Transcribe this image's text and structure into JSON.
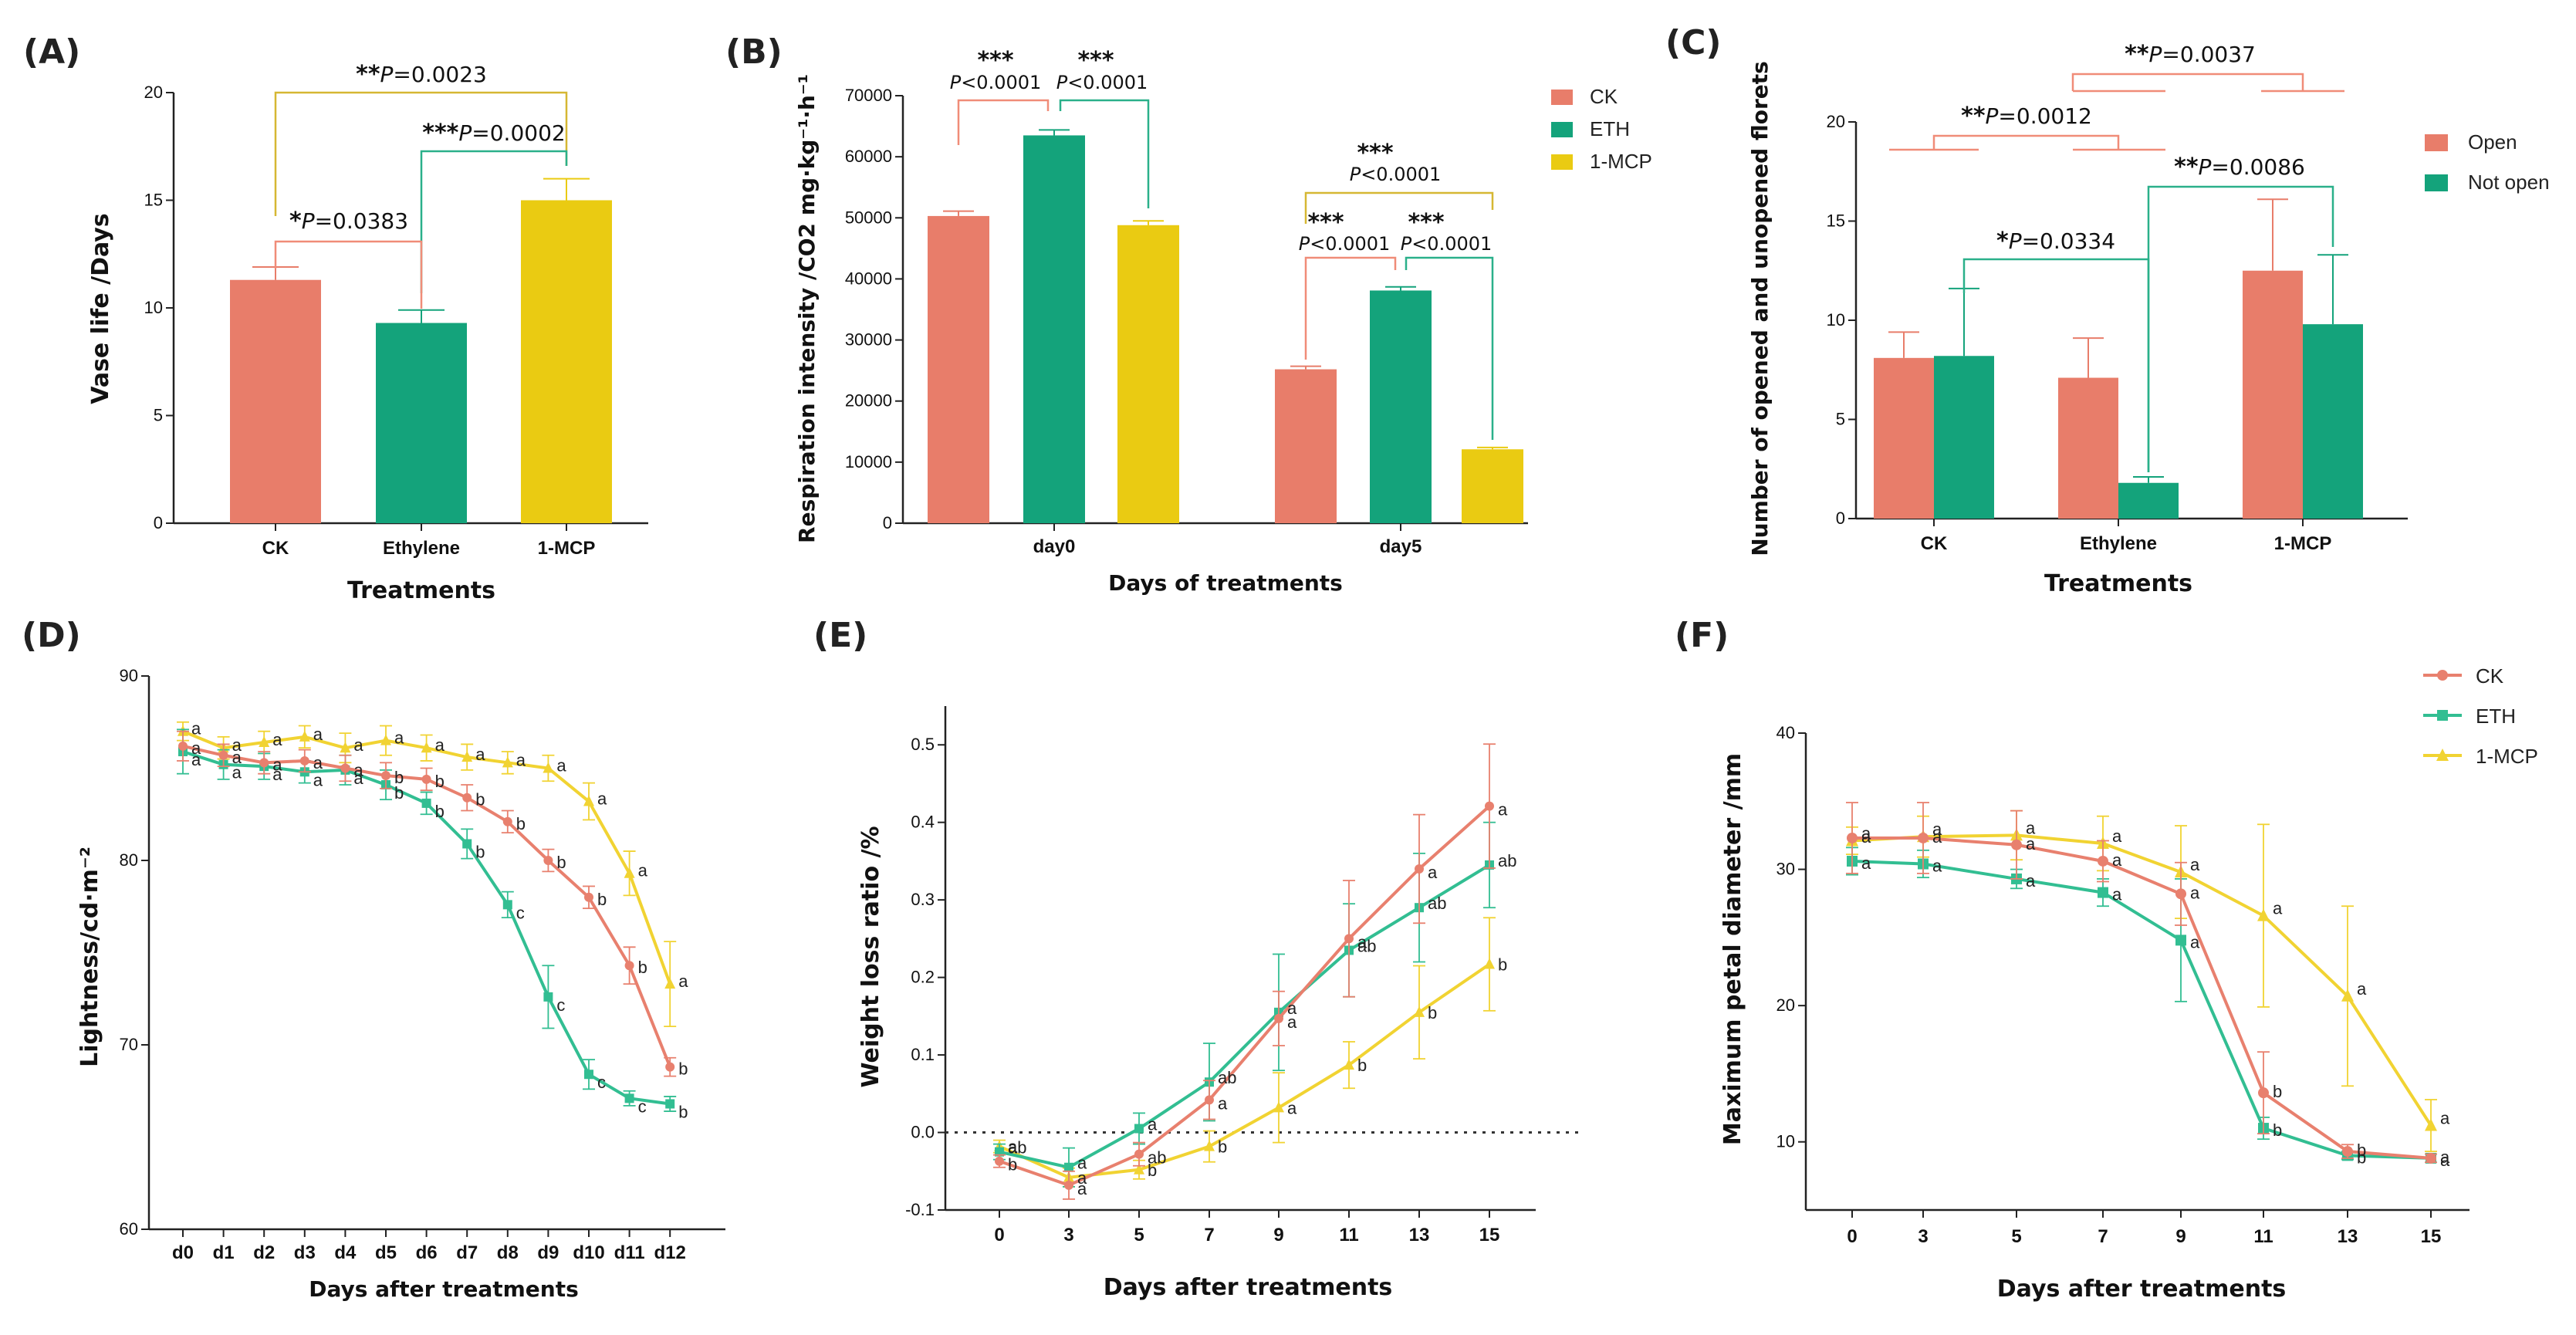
{
  "colors": {
    "ck": "#E87D6A",
    "eth": "#14A37B",
    "mcp": "#EACB12",
    "ck_line": "#E8806E",
    "eth_line": "#32BE92",
    "mcp_line": "#F1D332"
  },
  "chart_data": [
    {
      "type": "bar",
      "panel": "(A)",
      "categories": [
        "CK",
        "Ethylene",
        "1-MCP"
      ],
      "values": [
        11.3,
        9.3,
        15.0
      ],
      "errors": [
        0.6,
        0.6,
        1.0
      ],
      "ylabel": "Vase life /Days",
      "xlabel": "Treatments",
      "ylim": [
        0,
        20
      ],
      "yticks": [
        0,
        5,
        10,
        15,
        20
      ],
      "annotations": [
        {
          "pair": [
            0,
            2
          ],
          "stars": "**",
          "text": "P=0.0023"
        },
        {
          "pair": [
            1,
            2
          ],
          "stars": "***",
          "text": "P=0.0002"
        },
        {
          "pair": [
            0,
            1
          ],
          "stars": "*",
          "text": "P=0.0383"
        }
      ]
    },
    {
      "type": "bar",
      "panel": "(B)",
      "groups": [
        "day0",
        "day5"
      ],
      "series": [
        {
          "name": "CK",
          "values": [
            50300,
            25200
          ],
          "errors": [
            800,
            500
          ]
        },
        {
          "name": "ETH",
          "values": [
            63500,
            38100
          ],
          "errors": [
            900,
            600
          ]
        },
        {
          "name": "1-MCP",
          "values": [
            48800,
            12100
          ],
          "errors": [
            700,
            300
          ]
        }
      ],
      "ylabel": "Respiration intensity /CO2 mg·kg⁻¹·h⁻¹",
      "xlabel": "Days of treatments",
      "ylim": [
        0,
        70000
      ],
      "yticks": [
        0,
        10000,
        20000,
        30000,
        40000,
        50000,
        60000,
        70000
      ],
      "annotations": [
        {
          "stars": "***",
          "text": "P<0.0001"
        },
        {
          "stars": "***",
          "text": "P<0.0001"
        },
        {
          "stars": "***",
          "text": "P<0.0001"
        },
        {
          "stars": "***",
          "text": "P<0.0001"
        },
        {
          "stars": "***",
          "text": "P<0.0001"
        }
      ]
    },
    {
      "type": "bar",
      "panel": "(C)",
      "categories": [
        "CK",
        "Ethylene",
        "1-MCP"
      ],
      "series": [
        {
          "name": "Open",
          "values": [
            8.1,
            7.1,
            12.5
          ],
          "errors": [
            1.3,
            2.0,
            3.6
          ]
        },
        {
          "name": "Not open",
          "values": [
            8.2,
            1.8,
            9.8
          ],
          "errors": [
            3.4,
            0.3,
            3.5
          ]
        }
      ],
      "ylabel": "Number of opened and unopened florets",
      "xlabel": "Treatments",
      "ylim": [
        0,
        20
      ],
      "yticks": [
        0,
        5,
        10,
        15,
        20
      ],
      "annotations": [
        {
          "stars": "**",
          "text": "P=0.0037"
        },
        {
          "stars": "**",
          "text": "P=0.0012"
        },
        {
          "stars": "**",
          "text": "P=0.0086"
        },
        {
          "stars": "*",
          "text": "P=0.0334"
        }
      ]
    },
    {
      "type": "line",
      "panel": "(D)",
      "x": [
        "d0",
        "d1",
        "d2",
        "d3",
        "d4",
        "d5",
        "d6",
        "d7",
        "d8",
        "d9",
        "d10",
        "d11",
        "d12"
      ],
      "series": [
        {
          "name": "CK",
          "values": [
            86.2,
            85.7,
            85.3,
            85.4,
            85.0,
            84.6,
            84.4,
            83.4,
            82.1,
            80.0,
            78.0,
            74.3,
            68.8
          ],
          "errors": [
            0.8,
            0.6,
            0.6,
            0.6,
            0.7,
            0.7,
            0.6,
            0.7,
            0.6,
            0.6,
            0.6,
            1.0,
            0.5
          ],
          "letters": [
            "a",
            "a",
            "a",
            "a",
            "a",
            "b",
            "b",
            "b",
            "b",
            "b",
            "b",
            "b",
            "b"
          ]
        },
        {
          "name": "ETH",
          "values": [
            85.9,
            85.2,
            85.1,
            84.8,
            84.9,
            84.1,
            83.1,
            80.9,
            77.6,
            72.6,
            68.4,
            67.1,
            66.8
          ],
          "errors": [
            1.2,
            0.8,
            0.7,
            0.6,
            0.8,
            0.8,
            0.6,
            0.8,
            0.7,
            1.7,
            0.8,
            0.4,
            0.4
          ],
          "letters": [
            "a",
            "a",
            "a",
            "a",
            "a",
            "b",
            "b",
            "b",
            "c",
            "c",
            "c",
            "c",
            "b"
          ]
        },
        {
          "name": "1-MCP",
          "values": [
            87.0,
            86.1,
            86.4,
            86.7,
            86.1,
            86.5,
            86.1,
            85.6,
            85.3,
            85.0,
            83.2,
            79.3,
            73.3
          ],
          "errors": [
            0.5,
            0.6,
            0.6,
            0.6,
            0.8,
            0.8,
            0.7,
            0.7,
            0.6,
            0.7,
            1.0,
            1.2,
            2.3
          ],
          "letters": [
            "a",
            "a",
            "a",
            "a",
            "a",
            "a",
            "a",
            "a",
            "a",
            "a",
            "a",
            "a",
            "a"
          ]
        }
      ],
      "ylabel": "Lightness/cd·m⁻²",
      "xlabel": "Days after treatments",
      "ylim": [
        60,
        90
      ],
      "yticks": [
        60,
        70,
        80,
        90
      ]
    },
    {
      "type": "line",
      "panel": "(E)",
      "x": [
        0,
        3,
        5,
        7,
        9,
        11,
        13,
        15
      ],
      "series": [
        {
          "name": "CK",
          "values": [
            -0.037,
            -0.068,
            -0.028,
            0.042,
            0.147,
            0.25,
            0.34,
            0.421
          ],
          "errors": [
            0.008,
            0.018,
            0.015,
            0.025,
            0.035,
            0.075,
            0.07,
            0.08
          ],
          "letters": [
            "b",
            "a",
            "ab",
            "a",
            "a",
            "a",
            "a",
            "a"
          ]
        },
        {
          "name": "ETH",
          "values": [
            -0.025,
            -0.045,
            0.005,
            0.065,
            0.155,
            0.235,
            0.29,
            0.345
          ],
          "errors": [
            0.01,
            0.025,
            0.02,
            0.05,
            0.075,
            0.06,
            0.07,
            0.055
          ],
          "letters": [
            "ab",
            "a",
            "a",
            "ab",
            "a",
            "ab",
            "ab",
            "ab"
          ]
        },
        {
          "name": "1-MCP",
          "values": [
            -0.018,
            -0.058,
            -0.048,
            -0.018,
            0.032,
            0.087,
            0.155,
            0.217
          ],
          "errors": [
            0.008,
            0.012,
            0.012,
            0.02,
            0.045,
            0.03,
            0.06,
            0.06
          ],
          "letters": [
            "a",
            "a",
            "b",
            "b",
            "a",
            "b",
            "b",
            "b"
          ]
        }
      ],
      "ylabel": "Weight loss ratio /%",
      "xlabel": "Days after treatments",
      "ylim": [
        -0.1,
        0.55
      ],
      "yticks": [
        -0.1,
        0.0,
        0.1,
        0.2,
        0.3,
        0.4,
        0.5
      ],
      "reference_line": 0.0
    },
    {
      "type": "line",
      "panel": "(F)",
      "x": [
        0,
        3,
        5,
        7,
        9,
        11,
        13,
        15
      ],
      "series": [
        {
          "name": "CK",
          "values": [
            32.3,
            32.3,
            31.8,
            30.6,
            28.2,
            13.6,
            9.3,
            8.8
          ],
          "errors": [
            2.6,
            2.6,
            2.5,
            1.5,
            2.3,
            3.0,
            0.5,
            0.3
          ],
          "letters": [
            "a",
            "a",
            "a",
            "a",
            "a",
            "b",
            "b",
            "a"
          ]
        },
        {
          "name": "ETH",
          "values": [
            30.6,
            30.4,
            29.3,
            28.3,
            24.8,
            11.0,
            9.0,
            8.8
          ],
          "errors": [
            1.0,
            1.0,
            0.7,
            1.0,
            4.5,
            0.8,
            0.3,
            0.3
          ],
          "letters": [
            "a",
            "a",
            "a",
            "a",
            "a",
            "b",
            "b",
            "a"
          ]
        },
        {
          "name": "1-MCP",
          "values": [
            32.1,
            32.4,
            32.5,
            31.9,
            29.8,
            26.6,
            20.7,
            11.2
          ],
          "errors": [
            1.0,
            1.5,
            1.8,
            2.0,
            3.4,
            6.7,
            6.6,
            1.9
          ],
          "letters": [
            "a",
            "a",
            "a",
            "a",
            "a",
            "a",
            "a",
            "a"
          ]
        }
      ],
      "ylabel": "Maximum petal diameter /mm",
      "xlabel": "Days after treatments",
      "ylim": [
        5,
        40
      ],
      "yticks": [
        10,
        20,
        30,
        40
      ]
    }
  ]
}
